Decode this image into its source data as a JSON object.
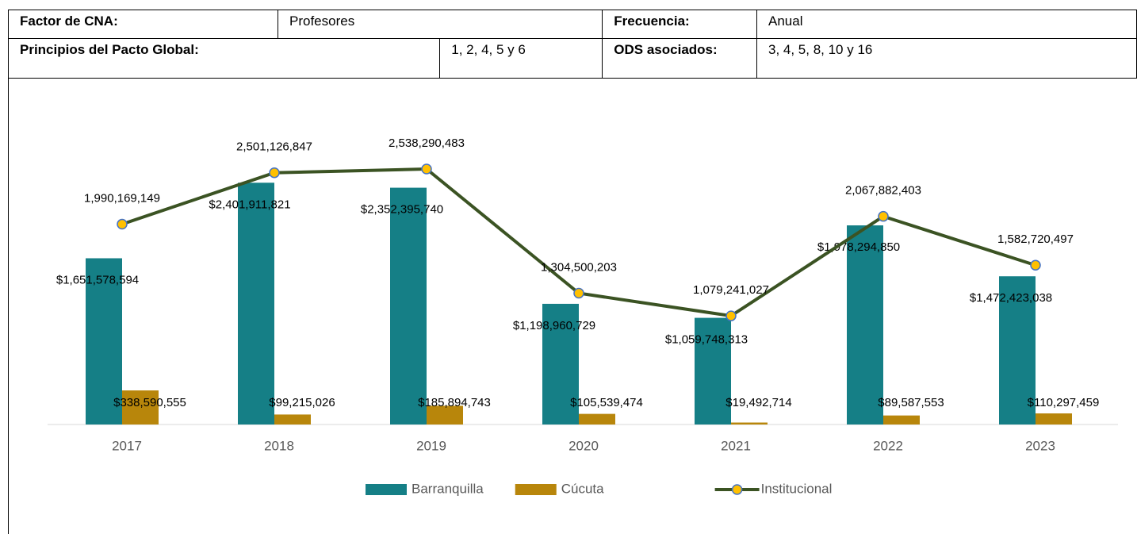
{
  "table": {
    "rows": [
      [
        "Factor de CNA:",
        "Profesores",
        "Frecuencia:",
        "Anual"
      ],
      [
        "Principios del Pacto Global:",
        "1, 2, 4, 5 y 6",
        "ODS asociados:",
        "3, 4, 5, 8, 10 y 16"
      ]
    ]
  },
  "chart_data": {
    "type": "bar",
    "categories": [
      "2017",
      "2018",
      "2019",
      "2020",
      "2021",
      "2022",
      "2023"
    ],
    "series": [
      {
        "name": "Barranquilla",
        "type": "bar",
        "color": "#157f86",
        "values": [
          1651578594,
          2401911821,
          2352395740,
          1198960729,
          1059748313,
          1978294850,
          1472423038
        ],
        "value_labels": [
          "$1,651,578,594",
          "$2,401,911,821",
          "$2,352,395,740",
          "$1,198,960,729",
          "$1,059,748,313",
          "$1,978,294,850",
          "$1,472,423,038"
        ]
      },
      {
        "name": "Cúcuta",
        "type": "bar",
        "color": "#b8860b",
        "values": [
          338590555,
          99215026,
          185894743,
          105539474,
          19492714,
          89587553,
          110297459
        ],
        "value_labels": [
          "$338,590,555",
          "$99,215,026",
          "$185,894,743",
          "$105,539,474",
          "$19,492,714",
          "$89,587,553",
          "$110,297,459"
        ]
      },
      {
        "name": "Institucional",
        "type": "line",
        "color": "#3b5323",
        "marker_color": "#ffc000",
        "values": [
          1990169149,
          2501126847,
          2538290483,
          1304500203,
          1079241027,
          2067882403,
          1582720497
        ],
        "value_labels": [
          "1,990,169,149",
          "2,501,126,847",
          "2,538,290,483",
          "1,304,500,203",
          "1,079,241,027",
          "2,067,882,403",
          "1,582,720,497"
        ]
      }
    ],
    "legend": "bottom"
  }
}
